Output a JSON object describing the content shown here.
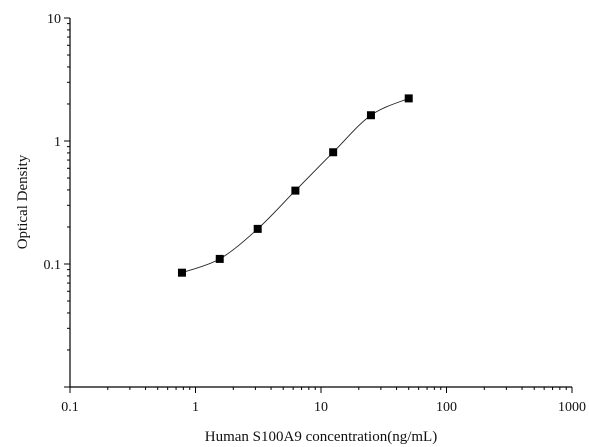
{
  "chart_data": {
    "type": "scatter",
    "title": "",
    "xlabel": "Human S100A9 concentration(ng/mL)",
    "ylabel": "Optical Density",
    "x_scale": "log",
    "y_scale": "log",
    "xlim": [
      0.1,
      1000
    ],
    "ylim": [
      0.01,
      10
    ],
    "x_ticks": [
      {
        "value": 0.1,
        "label": "0.1"
      },
      {
        "value": 1,
        "label": "1"
      },
      {
        "value": 10,
        "label": "10"
      },
      {
        "value": 100,
        "label": "100"
      },
      {
        "value": 1000,
        "label": "1000"
      }
    ],
    "y_ticks": [
      {
        "value": 0.1,
        "label": "0.1"
      },
      {
        "value": 1,
        "label": "1"
      },
      {
        "value": 10,
        "label": "10"
      }
    ],
    "grid": false,
    "legend": "none",
    "series": [
      {
        "marker": "square",
        "color": "#000000",
        "fit_line": true,
        "x": [
          0.78,
          1.56,
          3.13,
          6.25,
          12.5,
          25,
          50
        ],
        "y": [
          0.085,
          0.11,
          0.193,
          0.395,
          0.81,
          1.62,
          2.22
        ]
      }
    ]
  }
}
